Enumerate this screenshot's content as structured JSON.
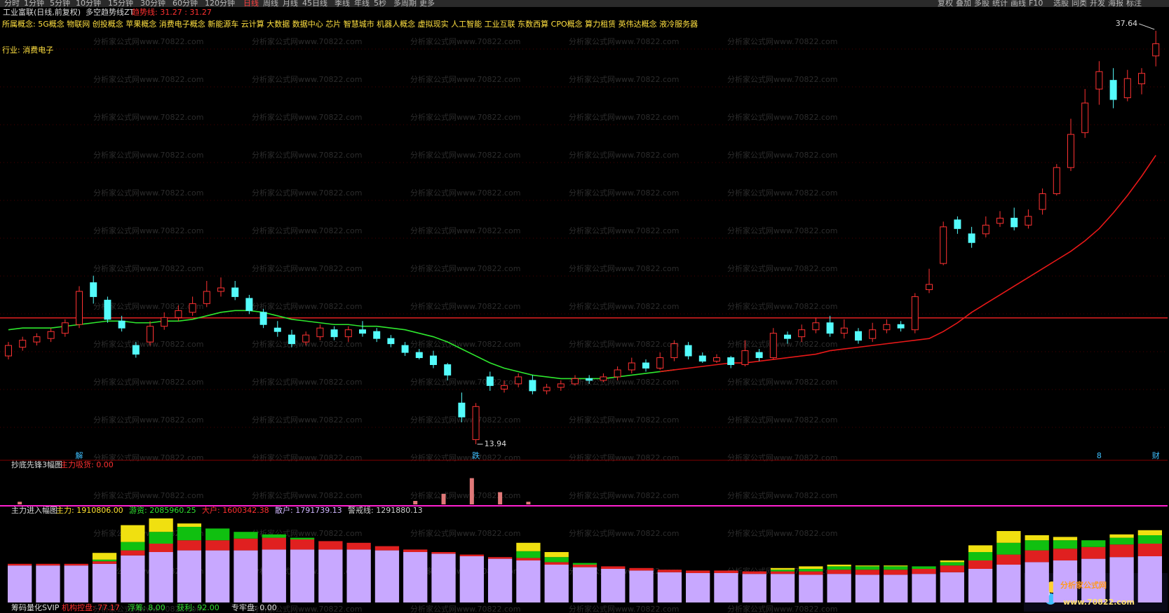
{
  "toolbar": {
    "left": [
      "分时",
      "1分钟",
      "5分钟",
      "10分钟",
      "15分钟",
      "30分钟",
      "60分钟",
      "120分钟",
      "日线",
      "周线",
      "月线",
      "45日线",
      "季线",
      "年线",
      "5秒",
      "多周期",
      "更多"
    ],
    "right": [
      "复权",
      "叠加",
      "多股",
      "统计",
      "画线",
      "F10",
      "选股",
      "同类",
      "开发",
      "海报",
      "标注"
    ]
  },
  "watermark": "分析家公式网www.70822.com",
  "logo": {
    "name": "分析家公式网",
    "url": "www.70822.com"
  },
  "footer": {
    "title": "筹码量化SVIP",
    "items": [
      "机构控盘: 77.17",
      "浮筹: 8.00",
      "获利: 92.00",
      "专牢盘: 0.00"
    ]
  },
  "chart_data": [
    {
      "type": "candlestick",
      "title": "工业富联(日线,前复权)",
      "indicator": "多空趋势线ZT",
      "indicator_value": "趋势线: 31.27 : 31.27",
      "concepts": "所属概念: 5G概念 物联网 创投概念 苹果概念 消费电子概念 新能源车 云计算 大数据 数据中心 芯片 智慧城市 机器人概念 虚拟现实 人工智能 工业互联 东数西算 CPO概念 算力租赁 英伟达概念 液冷服务器",
      "industry": "行业: 消费电子",
      "ylim": [
        13.5,
        38.0
      ],
      "high_label": 37.64,
      "low_label": 13.94,
      "ref_line": {
        "value": 21.18,
        "color": "#e02020"
      },
      "up_color": "#ff3232",
      "down_color": "#54fcfc",
      "categories": [
        null,
        null,
        null,
        null,
        null,
        "解",
        null,
        null,
        null,
        null,
        null,
        null,
        null,
        null,
        null,
        null,
        null,
        null,
        null,
        null,
        null,
        null,
        null,
        null,
        null,
        null,
        null,
        null,
        null,
        null,
        null,
        null,
        null,
        "跌",
        null,
        null,
        null,
        null,
        null,
        null,
        null,
        null,
        null,
        null,
        null,
        null,
        null,
        null,
        null,
        null,
        null,
        null,
        null,
        null,
        null,
        null,
        null,
        null,
        null,
        null,
        null,
        null,
        null,
        null,
        null,
        null,
        null,
        null,
        null,
        null,
        null,
        null,
        null,
        null,
        null,
        null,
        null,
        "8",
        null,
        null,
        null,
        "财"
      ],
      "candles": [
        [
          19.0,
          19.6,
          19.8,
          18.8
        ],
        [
          19.5,
          19.9,
          20.1,
          19.3
        ],
        [
          19.8,
          20.1,
          20.3,
          19.6
        ],
        [
          20.0,
          20.4,
          20.6,
          19.8
        ],
        [
          20.3,
          20.9,
          21.1,
          20.1
        ],
        [
          20.8,
          22.7,
          23.0,
          20.6
        ],
        [
          23.2,
          22.4,
          23.6,
          22.0
        ],
        [
          22.2,
          21.1,
          22.4,
          20.9
        ],
        [
          21.0,
          20.6,
          21.3,
          20.4
        ],
        [
          19.6,
          19.1,
          19.8,
          18.9
        ],
        [
          19.8,
          20.7,
          21.0,
          19.6
        ],
        [
          20.7,
          21.2,
          21.5,
          20.5
        ],
        [
          21.2,
          21.6,
          21.9,
          21.0
        ],
        [
          21.5,
          22.0,
          22.4,
          21.3
        ],
        [
          22.0,
          22.7,
          23.3,
          21.8
        ],
        [
          22.7,
          22.9,
          23.5,
          22.4
        ],
        [
          22.9,
          22.4,
          23.3,
          22.2
        ],
        [
          22.3,
          21.6,
          22.5,
          21.4
        ],
        [
          21.5,
          20.8,
          21.7,
          20.6
        ],
        [
          20.6,
          20.4,
          21.0,
          20.1
        ],
        [
          20.2,
          19.7,
          20.5,
          19.5
        ],
        [
          19.8,
          20.2,
          20.4,
          19.6
        ],
        [
          20.1,
          20.6,
          20.8,
          19.9
        ],
        [
          20.5,
          20.1,
          20.7,
          19.9
        ],
        [
          20.1,
          20.5,
          20.7,
          19.8
        ],
        [
          20.5,
          20.3,
          21.0,
          20.1
        ],
        [
          20.4,
          20.0,
          20.6,
          19.8
        ],
        [
          20.0,
          19.7,
          20.2,
          19.5
        ],
        [
          19.6,
          19.2,
          19.8,
          19.0
        ],
        [
          19.2,
          18.9,
          19.4,
          18.8
        ],
        [
          19.0,
          18.5,
          19.3,
          18.3
        ],
        [
          18.5,
          17.9,
          18.6,
          17.6
        ],
        [
          16.3,
          15.5,
          16.9,
          15.2
        ],
        [
          14.2,
          16.1,
          16.3,
          13.94
        ],
        [
          17.8,
          17.3,
          18.1,
          17.0
        ],
        [
          17.1,
          17.3,
          17.6,
          16.9
        ],
        [
          17.4,
          17.8,
          18.0,
          17.2
        ],
        [
          17.6,
          17.0,
          17.9,
          16.8
        ],
        [
          17.0,
          17.2,
          17.4,
          16.8
        ],
        [
          17.2,
          17.4,
          17.6,
          17.0
        ],
        [
          17.4,
          17.7,
          17.9,
          17.3
        ],
        [
          17.7,
          17.6,
          17.9,
          17.4
        ],
        [
          17.6,
          17.8,
          18.0,
          17.5
        ],
        [
          17.8,
          18.2,
          18.4,
          17.6
        ],
        [
          18.2,
          18.6,
          18.9,
          18.0
        ],
        [
          18.6,
          18.3,
          18.8,
          18.1
        ],
        [
          18.3,
          18.9,
          19.2,
          18.2
        ],
        [
          18.9,
          19.7,
          19.9,
          18.7
        ],
        [
          19.6,
          19.0,
          19.8,
          18.8
        ],
        [
          19.0,
          18.7,
          19.2,
          18.6
        ],
        [
          18.7,
          18.9,
          19.1,
          18.6
        ],
        [
          18.9,
          18.5,
          19.0,
          18.3
        ],
        [
          18.5,
          19.3,
          19.9,
          18.4
        ],
        [
          19.2,
          18.9,
          19.4,
          18.7
        ],
        [
          18.9,
          20.3,
          20.6,
          18.8
        ],
        [
          20.2,
          20.0,
          20.4,
          19.7
        ],
        [
          20.1,
          20.5,
          20.8,
          19.8
        ],
        [
          20.5,
          20.9,
          21.2,
          20.3
        ],
        [
          20.9,
          20.3,
          21.3,
          20.1
        ],
        [
          20.3,
          20.6,
          21.1,
          20.0
        ],
        [
          20.4,
          19.9,
          20.6,
          19.7
        ],
        [
          20.0,
          20.5,
          20.9,
          19.8
        ],
        [
          20.5,
          20.8,
          21.1,
          20.3
        ],
        [
          20.8,
          20.6,
          21.0,
          20.4
        ],
        [
          20.5,
          22.4,
          22.6,
          20.3
        ],
        [
          22.8,
          23.1,
          24.0,
          22.6
        ],
        [
          24.3,
          26.4,
          26.7,
          24.2
        ],
        [
          26.8,
          26.3,
          27.0,
          26.0
        ],
        [
          26.0,
          25.5,
          26.4,
          25.2
        ],
        [
          26.0,
          26.5,
          27.0,
          25.8
        ],
        [
          26.6,
          26.9,
          27.3,
          26.4
        ],
        [
          26.9,
          26.4,
          27.5,
          26.2
        ],
        [
          26.5,
          27.0,
          27.4,
          26.3
        ],
        [
          27.4,
          28.3,
          28.6,
          27.1
        ],
        [
          28.3,
          29.8,
          30.0,
          28.2
        ],
        [
          29.8,
          31.7,
          32.6,
          29.6
        ],
        [
          31.8,
          33.5,
          34.3,
          31.5
        ],
        [
          34.3,
          35.3,
          35.9,
          33.4
        ],
        [
          34.8,
          33.7,
          35.5,
          33.2
        ],
        [
          33.8,
          34.9,
          35.4,
          33.6
        ],
        [
          34.6,
          35.2,
          35.5,
          34.0
        ],
        [
          36.2,
          36.9,
          37.64,
          35.6
        ]
      ],
      "series": [
        {
          "color": "#2ee82e",
          "values": [
            20.5,
            20.6,
            20.6,
            20.6,
            20.7,
            20.8,
            20.9,
            21.0,
            21.0,
            20.9,
            20.9,
            21.0,
            21.0,
            21.1,
            21.3,
            21.5,
            21.6,
            21.6,
            21.5,
            21.3,
            21.1,
            21.0,
            20.9,
            20.8,
            20.8,
            20.7,
            20.7,
            20.6,
            20.5,
            20.3,
            20.1,
            19.8,
            19.4,
            19.0,
            18.6,
            18.3,
            18.1,
            17.9,
            17.8,
            17.7,
            17.7,
            17.7,
            17.7,
            17.8,
            17.9,
            18.0,
            18.1,
            18.2,
            null,
            null,
            null,
            null,
            null,
            null,
            null,
            null,
            null,
            null,
            null,
            null,
            null,
            null,
            null,
            null,
            null,
            null,
            null,
            null,
            null,
            null,
            null,
            null,
            null,
            null,
            null,
            null,
            null,
            null,
            null,
            null,
            null,
            null
          ]
        },
        {
          "color": "#e81818",
          "values": [
            null,
            null,
            null,
            null,
            null,
            null,
            null,
            null,
            null,
            null,
            null,
            null,
            null,
            null,
            null,
            null,
            null,
            null,
            null,
            null,
            null,
            null,
            null,
            null,
            null,
            null,
            null,
            null,
            null,
            null,
            null,
            null,
            null,
            null,
            null,
            null,
            null,
            null,
            null,
            null,
            null,
            null,
            null,
            null,
            null,
            null,
            18.1,
            18.2,
            18.3,
            18.4,
            18.5,
            18.6,
            18.6,
            18.7,
            18.8,
            18.9,
            19.0,
            19.1,
            19.3,
            19.4,
            19.5,
            19.6,
            19.7,
            19.8,
            19.9,
            20.0,
            20.4,
            20.9,
            21.5,
            22.0,
            22.5,
            23.0,
            23.5,
            24.0,
            24.5,
            25.0,
            25.6,
            26.3,
            27.2,
            28.2,
            29.3,
            30.5
          ]
        }
      ]
    },
    {
      "type": "bar",
      "title": "抄底先锋3幅图",
      "label": "主力吸货: 0.00",
      "color": "#e07878",
      "ylim": [
        0,
        40
      ],
      "values": [
        3,
        0,
        0,
        0,
        0,
        0,
        0,
        0,
        0,
        0,
        0,
        0,
        0,
        0,
        4,
        12,
        30,
        14,
        3,
        0,
        0,
        0,
        0,
        0,
        0,
        0,
        0,
        0,
        0,
        0,
        0,
        0,
        0,
        0,
        0,
        0,
        0,
        0,
        0,
        0,
        0
      ]
    },
    {
      "type": "stacked-bar",
      "title": "主力进入幅图",
      "ylim": [
        0,
        100
      ],
      "legend": [
        {
          "text": "主力: 1910806.00",
          "color": "#ffe030"
        },
        {
          "text": "游资: 2085960.25",
          "color": "#30e030"
        },
        {
          "text": "大户: 1600342.38",
          "color": "#ff3030"
        },
        {
          "text": "散户: 1791739.13",
          "color": "#d0b8ff"
        },
        {
          "text": "警戒线: 1291880.13",
          "color": "#d0d0d0"
        }
      ],
      "series": [
        {
          "color": "#c8a8ff",
          "values": [
            44,
            44,
            44,
            46,
            56,
            60,
            62,
            62,
            62,
            63,
            63,
            63,
            63,
            62,
            60,
            58,
            55,
            52,
            50,
            45,
            42,
            40,
            38,
            36,
            35,
            35,
            34,
            34,
            33,
            34,
            33,
            33,
            34,
            36,
            40,
            45,
            48,
            50,
            52,
            54,
            55
          ]
        },
        {
          "color": "#e02020",
          "values": [
            2,
            2,
            2,
            3,
            6,
            10,
            12,
            12,
            14,
            14,
            12,
            10,
            8,
            5,
            3,
            2,
            2,
            2,
            3,
            3,
            3,
            3,
            3,
            3,
            3,
            3,
            3,
            3,
            4,
            5,
            6,
            6,
            6,
            8,
            10,
            12,
            14,
            14,
            14,
            15,
            15
          ]
        },
        {
          "color": "#10c010",
          "values": [
            0,
            0,
            0,
            2,
            10,
            14,
            16,
            14,
            8,
            4,
            2,
            0,
            0,
            0,
            0,
            0,
            0,
            0,
            8,
            6,
            2,
            0,
            0,
            0,
            0,
            0,
            0,
            2,
            3,
            4,
            4,
            4,
            3,
            4,
            10,
            14,
            12,
            10,
            8,
            8,
            10
          ]
        },
        {
          "color": "#f0e010",
          "values": [
            0,
            0,
            0,
            8,
            20,
            16,
            4,
            0,
            0,
            0,
            0,
            0,
            0,
            0,
            0,
            0,
            0,
            0,
            10,
            6,
            0,
            0,
            0,
            0,
            0,
            0,
            0,
            2,
            3,
            2,
            1,
            1,
            0,
            2,
            8,
            14,
            6,
            4,
            0,
            4,
            6
          ]
        }
      ]
    }
  ]
}
